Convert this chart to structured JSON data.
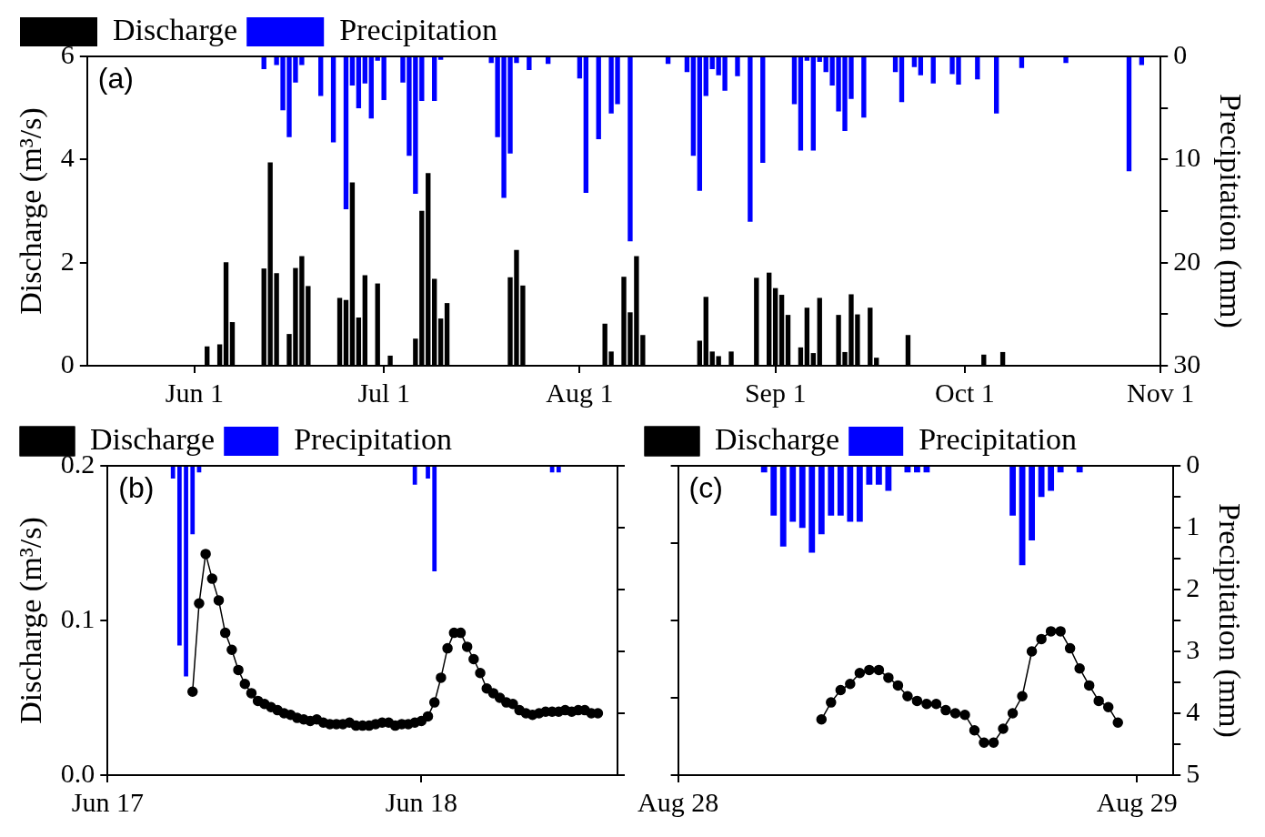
{
  "chart_data": [
    {
      "type": "bar",
      "annotations": [
        "(a)"
      ],
      "ylabel": "Discharge (m³/s)",
      "y2label": "Precipitation (mm)",
      "legend": "top",
      "grid": false,
      "xlim": [
        "--05-15",
        "--11-01"
      ],
      "xticks": [
        {
          "value": "--06-01",
          "label": "Jun 1"
        },
        {
          "value": "--07-01",
          "label": "Jul 1"
        },
        {
          "value": "--08-01",
          "label": "Aug 1"
        },
        {
          "value": "--09-01",
          "label": "Sep 1"
        },
        {
          "value": "--10-01",
          "label": "Oct 1"
        },
        {
          "value": "--11-01",
          "label": "Nov 1"
        }
      ],
      "ylim": [
        0,
        6
      ],
      "yticks": [
        0,
        2,
        4,
        6
      ],
      "y2lim": [
        30,
        0
      ],
      "y2ticks": [
        0,
        {
          "value": 5,
          "label": null
        },
        10,
        {
          "value": 15,
          "label": null
        },
        20,
        {
          "value": 25,
          "label": null
        },
        30
      ],
      "series": [
        {
          "name": "Discharge",
          "color": "#000000",
          "x": [
            "--06-03",
            "--06-05",
            "--06-06",
            "--06-07",
            "--06-12",
            "--06-13",
            "--06-14",
            "--06-16",
            "--06-17",
            "--06-18",
            "--06-19",
            "--06-24",
            "--06-25",
            "--06-26",
            "--06-27",
            "--06-28",
            "--06-30",
            "--07-02",
            "--07-06",
            "--07-07",
            "--07-08",
            "--07-09",
            "--07-10",
            "--07-11",
            "--07-21",
            "--07-22",
            "--07-23",
            "--08-05",
            "--08-06",
            "--08-08",
            "--08-09",
            "--08-10",
            "--08-11",
            "--08-20",
            "--08-21",
            "--08-22",
            "--08-23",
            "--08-25",
            "--08-29",
            "--08-31",
            "--09-01",
            "--09-02",
            "--09-03",
            "--09-05",
            "--09-06",
            "--09-07",
            "--09-08",
            "--09-11",
            "--09-12",
            "--09-13",
            "--09-14",
            "--09-16",
            "--09-17",
            "--09-22",
            "--10-04",
            "--10-07"
          ],
          "values": [
            0.37,
            0.41,
            2.0,
            0.84,
            1.88,
            3.94,
            1.79,
            0.61,
            1.89,
            2.12,
            1.54,
            1.31,
            1.27,
            3.55,
            0.93,
            1.75,
            1.59,
            0.19,
            0.52,
            3.0,
            3.73,
            1.68,
            0.91,
            1.21,
            1.71,
            2.24,
            1.55,
            0.81,
            0.27,
            1.72,
            1.03,
            2.12,
            0.59,
            0.48,
            1.33,
            0.27,
            0.18,
            0.27,
            1.7,
            1.8,
            1.5,
            1.37,
            0.98,
            0.35,
            1.12,
            0.24,
            1.31,
            0.98,
            0.26,
            1.38,
            0.99,
            1.12,
            0.15,
            0.59,
            0.21,
            0.26
          ]
        },
        {
          "name": "Precipitation",
          "axis": "y2",
          "color": "#0000ff",
          "x": [
            "--06-12",
            "--06-14",
            "--06-15",
            "--06-16",
            "--06-17",
            "--06-18",
            "--06-21",
            "--06-23",
            "--06-25",
            "--06-26",
            "--06-27",
            "--06-28",
            "--06-29",
            "--06-30",
            "--07-01",
            "--07-04",
            "--07-05",
            "--07-06",
            "--07-07",
            "--07-09",
            "--07-10",
            "--07-18",
            "--07-19",
            "--07-20",
            "--07-21",
            "--07-22",
            "--07-24",
            "--07-27",
            "--08-01",
            "--08-02",
            "--08-04",
            "--08-06",
            "--08-07",
            "--08-09",
            "--08-15",
            "--08-18",
            "--08-19",
            "--08-20",
            "--08-21",
            "--08-22",
            "--08-23",
            "--08-24",
            "--08-26",
            "--08-28",
            "--08-30",
            "--09-04",
            "--09-05",
            "--09-06",
            "--09-07",
            "--09-08",
            "--09-09",
            "--09-10",
            "--09-11",
            "--09-12",
            "--09-13",
            "--09-15",
            "--09-20",
            "--09-21",
            "--09-23",
            "--09-24",
            "--09-26",
            "--09-29",
            "--09-30",
            "--10-03",
            "--10-06",
            "--10-10",
            "--10-17",
            "--10-27",
            "--10-29"
          ],
          "values": [
            1.2,
            0.8,
            5.2,
            7.8,
            2.5,
            0.8,
            3.8,
            8.3,
            14.8,
            2.8,
            5.0,
            2.6,
            6.0,
            0.4,
            4.2,
            2.5,
            9.6,
            13.3,
            4.3,
            4.3,
            0.3,
            0.6,
            7.8,
            13.7,
            9.4,
            0.6,
            1.3,
            0.7,
            2.1,
            13.2,
            8.0,
            5.5,
            4.6,
            17.9,
            0.7,
            1.5,
            9.6,
            13.0,
            3.8,
            1.2,
            1.8,
            3.3,
            1.9,
            16.0,
            10.3,
            4.6,
            9.1,
            0.4,
            9.1,
            0.5,
            1.5,
            2.8,
            5.3,
            7.2,
            4.1,
            5.9,
            1.5,
            4.4,
            1.0,
            1.8,
            2.6,
            1.7,
            2.7,
            2.2,
            5.5,
            1.1,
            0.6,
            11.1,
            0.8
          ]
        }
      ]
    },
    {
      "type": "line",
      "annotations": [
        "(b)"
      ],
      "ylabel": "Discharge (m³/s)",
      "legend": "top",
      "grid": false,
      "marker": "circle",
      "line_style": "solid",
      "tick_labels": [
        "x",
        "y"
      ],
      "xlim": [
        "--06-17",
        "--06-18T15:00"
      ],
      "xticks": [
        {
          "value": "--06-17",
          "label": "Jun 17"
        },
        {
          "value": "--06-18",
          "label": "Jun 18"
        }
      ],
      "ylim": [
        0,
        0.2
      ],
      "yticks": [
        {
          "value": 0,
          "label": "0.0"
        },
        0.1,
        0.2
      ],
      "y2lim": [
        5,
        0
      ],
      "series": [
        {
          "name": "Discharge",
          "color": "#000000",
          "x": [
            "--06-17T06:30",
            "--06-17T07:00",
            "--06-17T07:30",
            "--06-17T08:00",
            "--06-17T08:30",
            "--06-17T09:00",
            "--06-17T09:30",
            "--06-17T10:00",
            "--06-17T10:30",
            "--06-17T11:00",
            "--06-17T11:30",
            "--06-17T12:00",
            "--06-17T12:30",
            "--06-17T13:00",
            "--06-17T13:30",
            "--06-17T14:00",
            "--06-17T14:30",
            "--06-17T15:00",
            "--06-17T15:30",
            "--06-17T16:00",
            "--06-17T16:30",
            "--06-17T17:00",
            "--06-17T17:30",
            "--06-17T18:00",
            "--06-17T18:30",
            "--06-17T19:00",
            "--06-17T19:30",
            "--06-17T20:00",
            "--06-17T20:30",
            "--06-17T21:00",
            "--06-17T21:30",
            "--06-17T22:00",
            "--06-17T22:30",
            "--06-17T23:00",
            "--06-17T23:30",
            "--06-18T00:00",
            "--06-18T00:30",
            "--06-18T01:00",
            "--06-18T01:30",
            "--06-18T02:00",
            "--06-18T02:30",
            "--06-18T03:00",
            "--06-18T03:30",
            "--06-18T04:00",
            "--06-18T04:30",
            "--06-18T05:00",
            "--06-18T05:30",
            "--06-18T06:00",
            "--06-18T06:30",
            "--06-18T07:00",
            "--06-18T07:30",
            "--06-18T08:00",
            "--06-18T08:30",
            "--06-18T09:00",
            "--06-18T09:30",
            "--06-18T10:00",
            "--06-18T10:30",
            "--06-18T11:00",
            "--06-18T11:30",
            "--06-18T12:00",
            "--06-18T12:30",
            "--06-18T13:00",
            "--06-18T13:30"
          ],
          "values": [
            0.054,
            0.111,
            0.143,
            0.127,
            0.113,
            0.092,
            0.081,
            0.068,
            0.059,
            0.053,
            0.048,
            0.046,
            0.044,
            0.042,
            0.04,
            0.039,
            0.037,
            0.036,
            0.035,
            0.036,
            0.034,
            0.033,
            0.033,
            0.033,
            0.034,
            0.032,
            0.032,
            0.032,
            0.033,
            0.034,
            0.034,
            0.032,
            0.033,
            0.033,
            0.034,
            0.035,
            0.038,
            0.047,
            0.063,
            0.082,
            0.092,
            0.092,
            0.083,
            0.075,
            0.066,
            0.056,
            0.053,
            0.05,
            0.047,
            0.046,
            0.042,
            0.04,
            0.039,
            0.04,
            0.041,
            0.041,
            0.041,
            0.042,
            0.041,
            0.042,
            0.042,
            0.04,
            0.04
          ]
        },
        {
          "name": "Precipitation",
          "type": "bar",
          "axis": "y2",
          "color": "#0000ff",
          "x": [
            "--06-17T05:00",
            "--06-17T05:30",
            "--06-17T06:00",
            "--06-17T06:30",
            "--06-17T07:00",
            "--06-17T23:30",
            "--06-18T00:30",
            "--06-18T01:00",
            "--06-18T10:00",
            "--06-18T10:30"
          ],
          "values": [
            0.2,
            2.9,
            3.4,
            1.1,
            0.1,
            0.3,
            0.2,
            1.7,
            0.1,
            0.1
          ]
        }
      ]
    },
    {
      "type": "line",
      "annotations": [
        "(c)"
      ],
      "y2label": "Precipitation (mm)",
      "legend": "top",
      "grid": false,
      "marker": "circle",
      "line_style": "solid",
      "tick_labels": [
        "x",
        "y2"
      ],
      "xlim": [
        "--08-28",
        "--08-29T01:54"
      ],
      "xticks": [
        {
          "value": "--08-28",
          "label": "Aug 28"
        },
        {
          "value": "--08-29",
          "label": "Aug 29"
        }
      ],
      "ylim": [
        0,
        0.2
      ],
      "y2lim": [
        5,
        0
      ],
      "y2ticks": [
        0,
        {
          "value": 0.5,
          "label": null
        },
        1,
        {
          "value": 1.5,
          "label": null
        },
        2,
        {
          "value": 2.5,
          "label": null
        },
        3,
        {
          "value": 3.5,
          "label": null
        },
        4,
        {
          "value": 4.5,
          "label": null
        },
        5
      ],
      "series": [
        {
          "name": "Discharge",
          "color": "#000000",
          "x": [
            "--08-28T07:30",
            "--08-28T08:00",
            "--08-28T08:30",
            "--08-28T09:00",
            "--08-28T09:30",
            "--08-28T10:00",
            "--08-28T10:30",
            "--08-28T11:00",
            "--08-28T11:30",
            "--08-28T12:00",
            "--08-28T12:30",
            "--08-28T13:00",
            "--08-28T13:30",
            "--08-28T14:00",
            "--08-28T14:30",
            "--08-28T15:00",
            "--08-28T15:30",
            "--08-28T16:00",
            "--08-28T16:30",
            "--08-28T17:00",
            "--08-28T17:30",
            "--08-28T18:00",
            "--08-28T18:30",
            "--08-28T19:00",
            "--08-28T19:30",
            "--08-28T20:00",
            "--08-28T20:30",
            "--08-28T21:00",
            "--08-28T21:30",
            "--08-28T22:00",
            "--08-28T22:30",
            "--08-28T23:00"
          ],
          "values": [
            0.036,
            0.047,
            0.055,
            0.059,
            0.066,
            0.068,
            0.068,
            0.063,
            0.058,
            0.051,
            0.048,
            0.046,
            0.046,
            0.042,
            0.04,
            0.039,
            0.029,
            0.021,
            0.021,
            0.03,
            0.04,
            0.051,
            0.08,
            0.088,
            0.093,
            0.093,
            0.082,
            0.069,
            0.058,
            0.048,
            0.044,
            0.034
          ]
        },
        {
          "name": "Precipitation",
          "type": "bar",
          "axis": "y2",
          "color": "#0000ff",
          "x": [
            "--08-28T04:30",
            "--08-28T05:00",
            "--08-28T05:30",
            "--08-28T06:00",
            "--08-28T06:30",
            "--08-28T07:00",
            "--08-28T07:30",
            "--08-28T08:00",
            "--08-28T08:30",
            "--08-28T09:00",
            "--08-28T09:30",
            "--08-28T10:00",
            "--08-28T10:30",
            "--08-28T11:00",
            "--08-28T12:00",
            "--08-28T12:30",
            "--08-28T13:00",
            "--08-28T17:30",
            "--08-28T18:00",
            "--08-28T18:30",
            "--08-28T19:00",
            "--08-28T19:30",
            "--08-28T20:00",
            "--08-28T21:00"
          ],
          "values": [
            0.1,
            0.8,
            1.3,
            0.9,
            1.0,
            1.4,
            1.1,
            0.8,
            0.8,
            0.9,
            0.9,
            0.3,
            0.3,
            0.4,
            0.1,
            0.1,
            0.1,
            0.8,
            1.6,
            1.2,
            0.5,
            0.4,
            0.1,
            0.1
          ]
        }
      ]
    }
  ]
}
